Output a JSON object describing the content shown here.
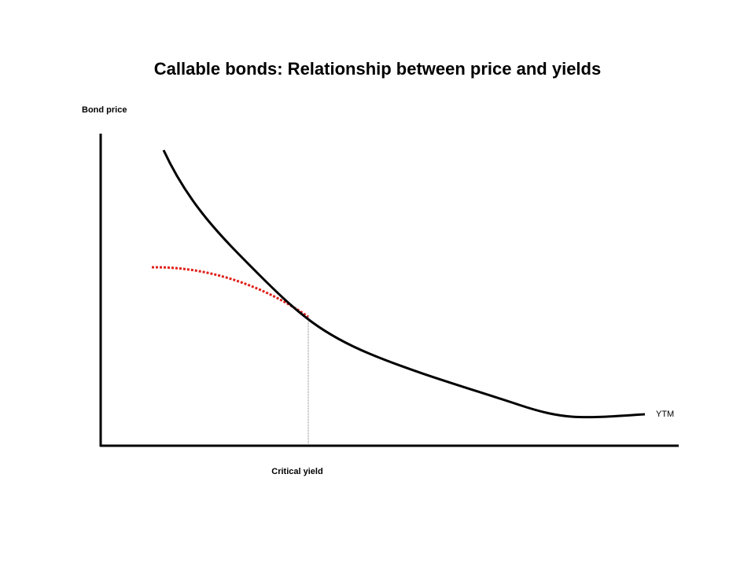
{
  "title": "Callable bonds: Relationship between price and yields",
  "y_axis_label": "Bond price",
  "x_axis_label": "YTM",
  "critical_yield_label": "Critical yield"
}
